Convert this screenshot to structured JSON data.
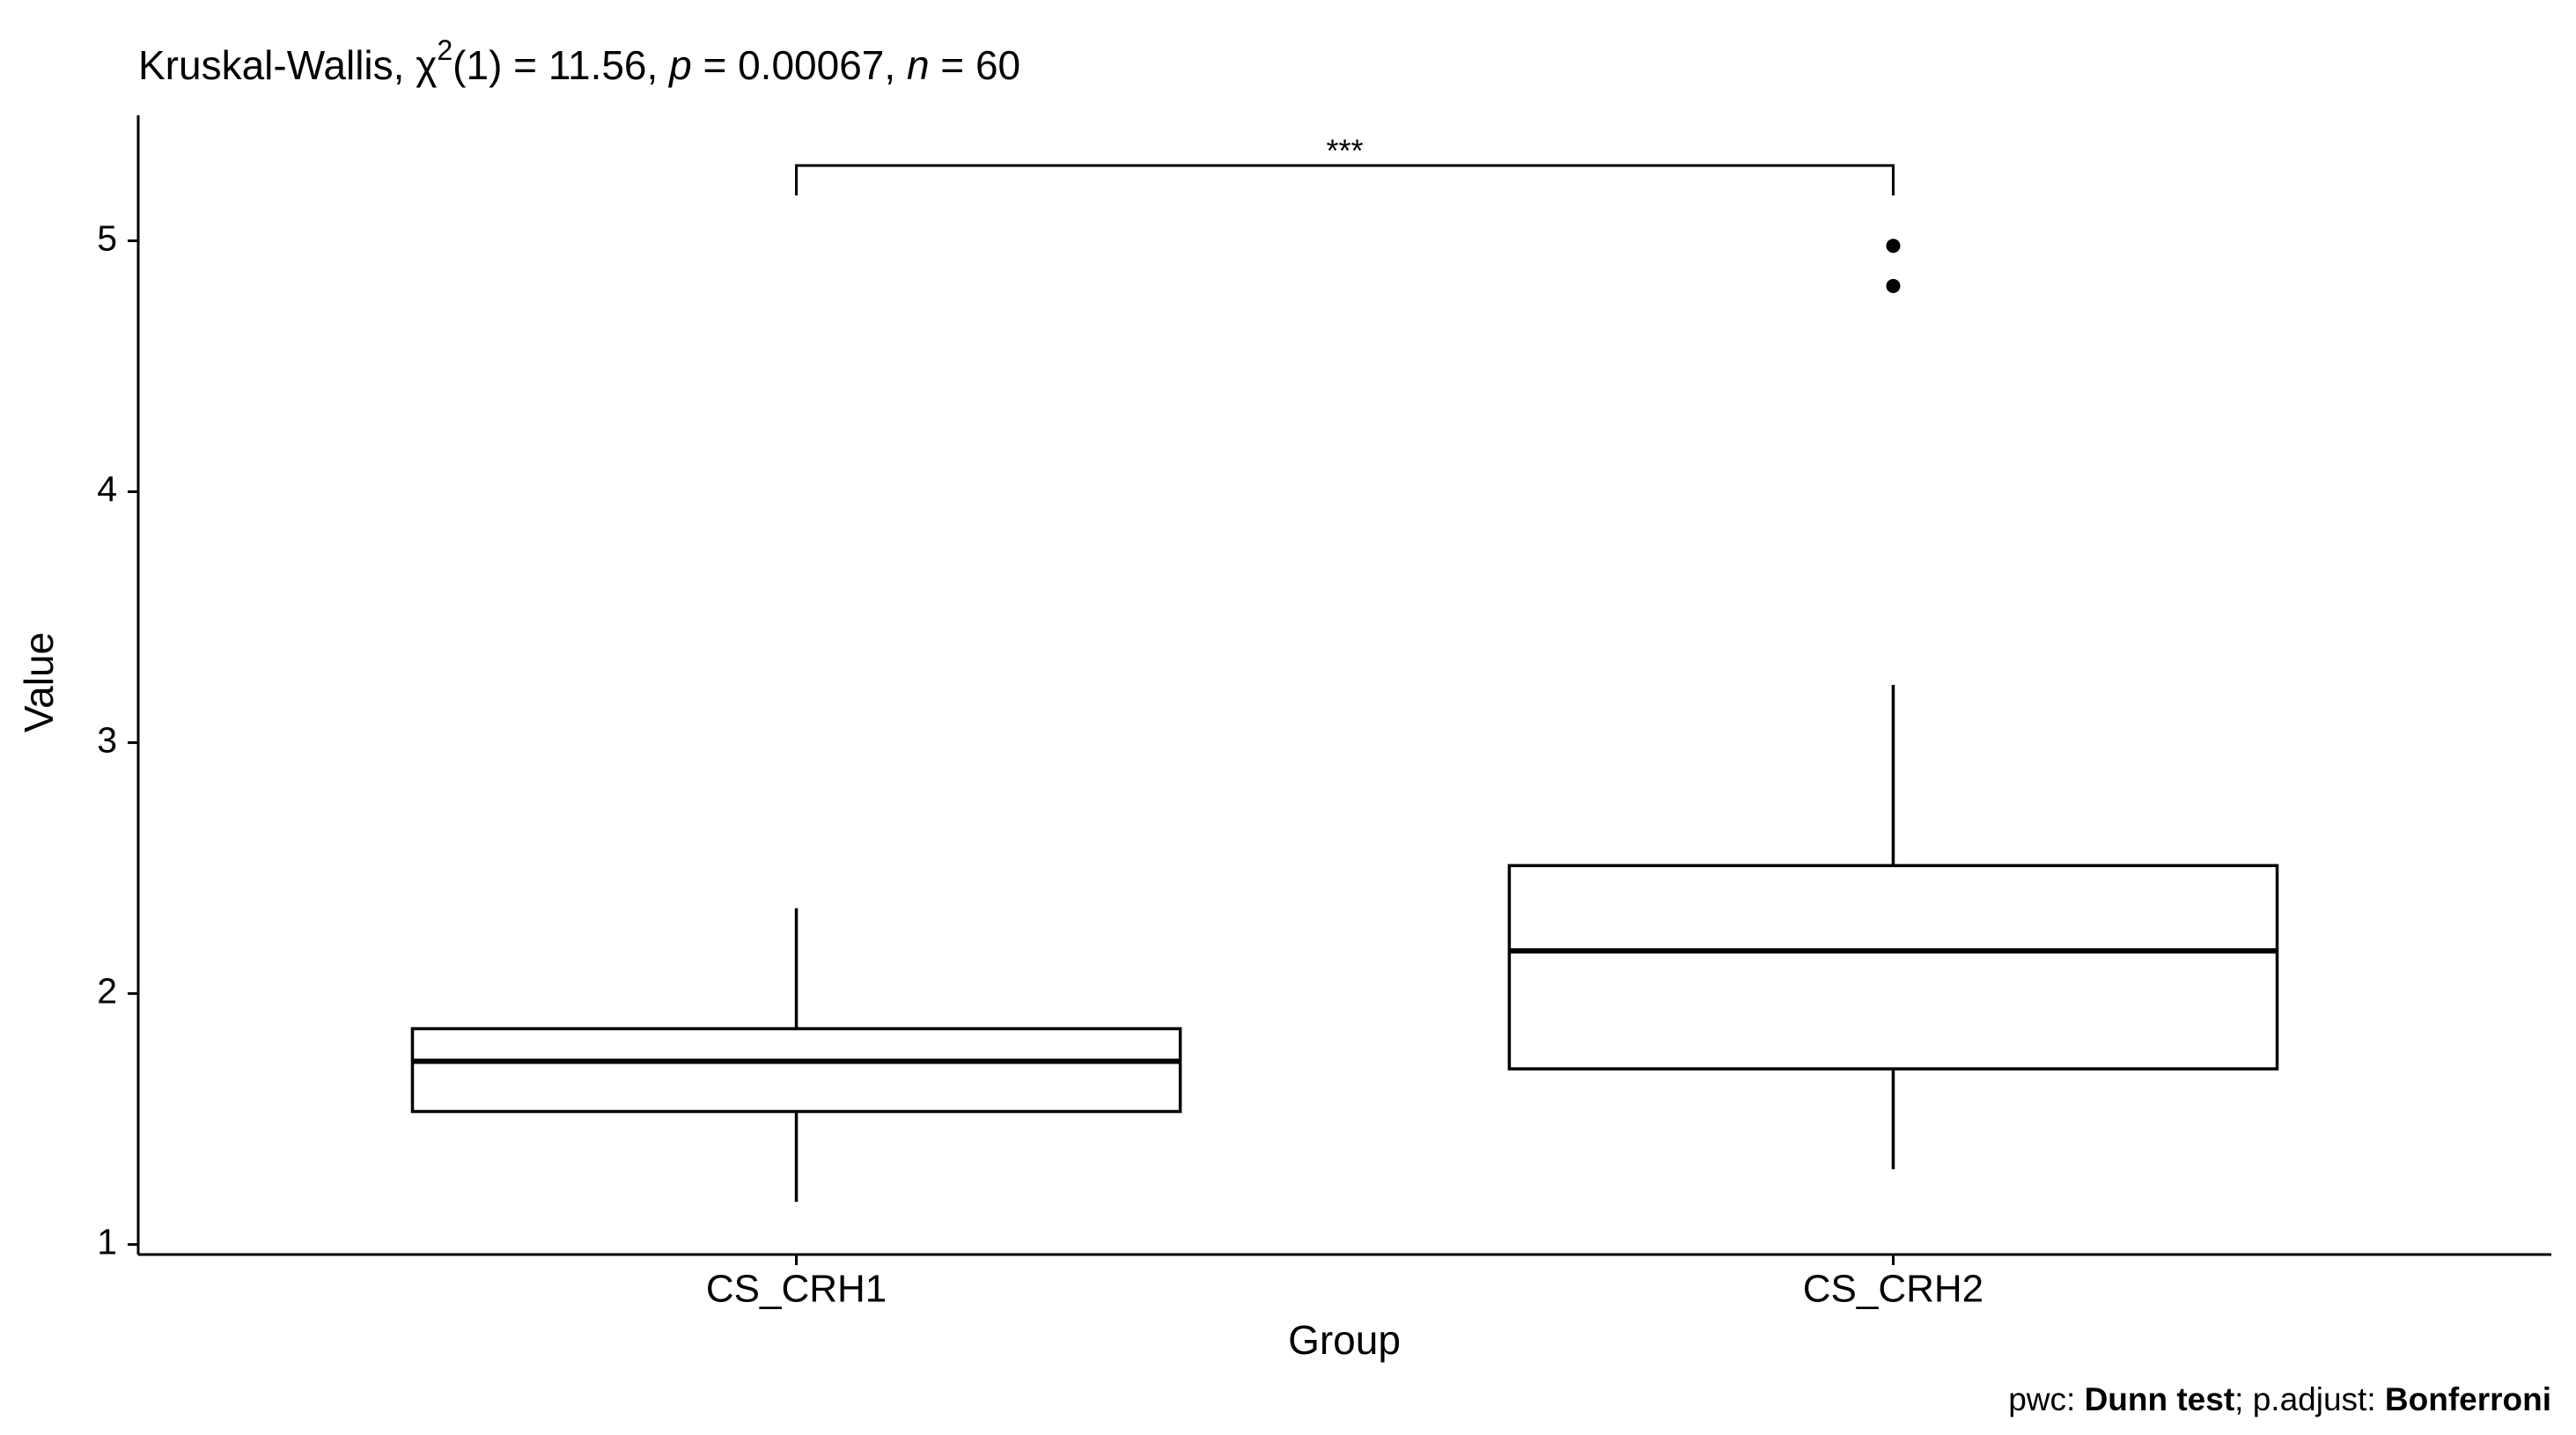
{
  "chart_data": {
    "type": "boxplot",
    "title_segments": [
      {
        "text": "Kruskal-Wallis, χ",
        "style": "normal"
      },
      {
        "text": "2",
        "style": "sup"
      },
      {
        "text": "(1) = 11.56, ",
        "style": "normal"
      },
      {
        "text": "p",
        "style": "italic"
      },
      {
        "text": " = 0.00067, ",
        "style": "normal"
      },
      {
        "text": "n",
        "style": "italic"
      },
      {
        "text": " = 60",
        "style": "normal"
      }
    ],
    "caption_segments": [
      {
        "text": "pwc: ",
        "style": "normal"
      },
      {
        "text": "Dunn test",
        "style": "bold"
      },
      {
        "text": "; p.adjust: ",
        "style": "normal"
      },
      {
        "text": "Bonferroni",
        "style": "bold"
      }
    ],
    "x_label": "Group",
    "y_label": "Value",
    "categories": [
      "CS_CRH1",
      "CS_CRH2"
    ],
    "boxes": [
      {
        "low": 1.17,
        "q1": 1.53,
        "median": 1.73,
        "q3": 1.86,
        "high": 2.34,
        "outliers": []
      },
      {
        "low": 1.3,
        "q1": 1.7,
        "median": 2.17,
        "q3": 2.51,
        "high": 3.23,
        "outliers": [
          4.98,
          4.82
        ]
      }
    ],
    "annotations": [
      {
        "text": "***",
        "from": "CS_CRH1",
        "to": "CS_CRH2",
        "y": 5.3
      }
    ],
    "ylim": [
      0.96,
      5.5
    ],
    "yticks": [
      1,
      2,
      3,
      4,
      5
    ],
    "color": "#000000",
    "fill": "#ffffff"
  }
}
